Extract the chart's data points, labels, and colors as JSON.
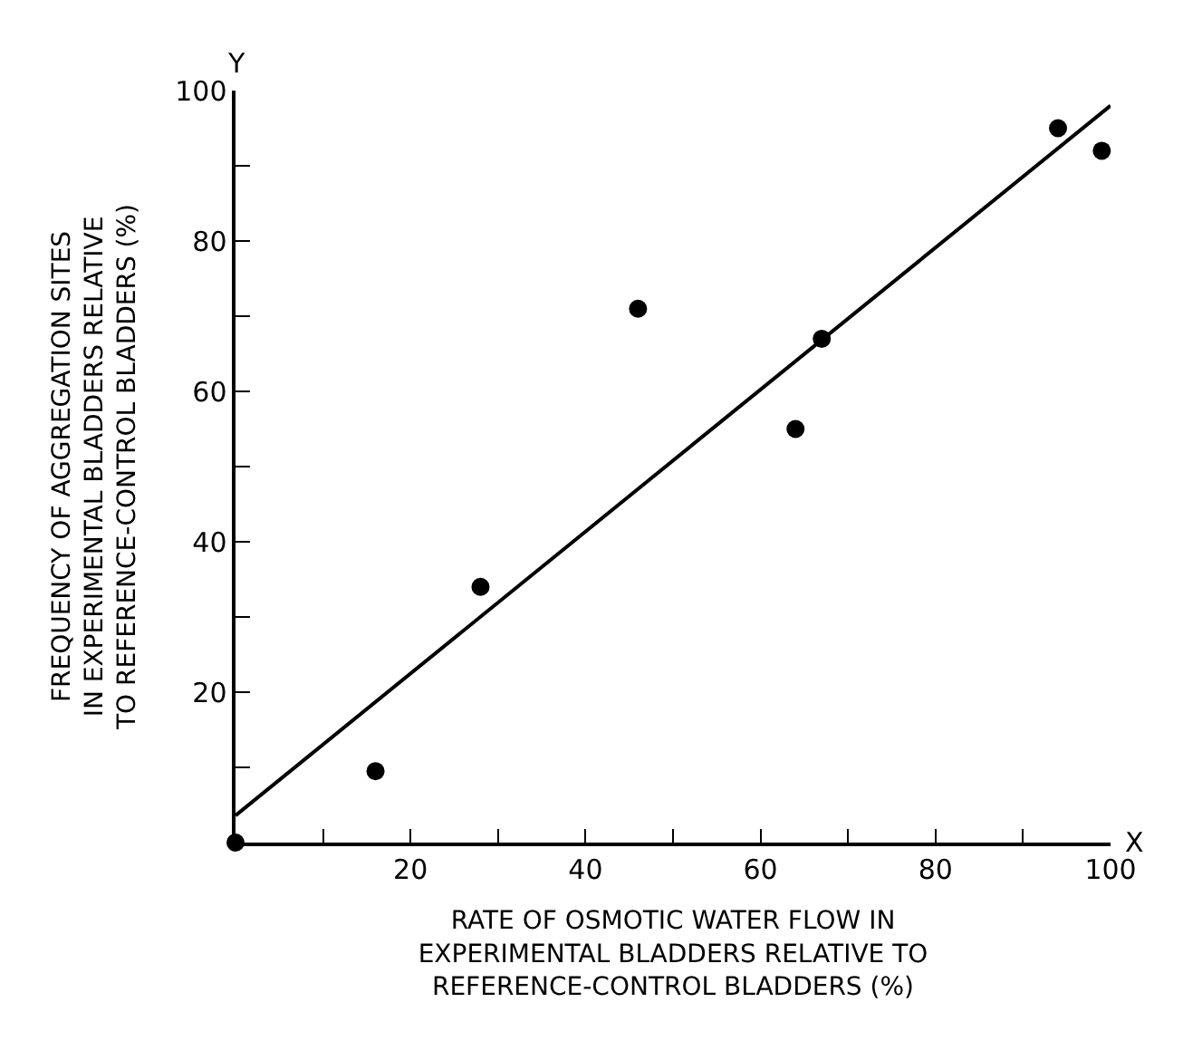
{
  "chart_data": {
    "type": "scatter",
    "xlabel": "RATE OF OSMOTIC WATER FLOW IN\nEXPERIMENTAL BLADDERS RELATIVE TO\nREFERENCE-CONTROL BLADDERS (%)",
    "ylabel": "FREQUENCY OF AGGREGATION SITES\nIN EXPERIMENTAL BLADDERS RELATIVE\nTO REFERENCE-CONTROL BLADDERS (%)",
    "series": [
      {
        "color": "#000000",
        "marker": "circle",
        "x": [
          0,
          16,
          28,
          46,
          64,
          67,
          94,
          99
        ],
        "values": [
          0,
          9.5,
          34,
          71,
          55,
          67,
          95,
          92
        ]
      },
      {
        "type": "line",
        "color": "#000000",
        "marker": "none",
        "line_style": "solid",
        "x": [
          0,
          100
        ],
        "values": [
          3.6,
          98
        ]
      }
    ],
    "xlim": [
      0,
      100
    ],
    "ylim": [
      0,
      100
    ],
    "xticks": [
      {
        "value": 10,
        "label": null
      },
      20,
      {
        "value": 30,
        "label": null
      },
      40,
      {
        "value": 50,
        "label": null
      },
      60,
      {
        "value": 70,
        "label": null
      },
      80,
      {
        "value": 90,
        "label": null
      },
      100
    ],
    "yticks": [
      {
        "value": 10,
        "label": null
      },
      20,
      {
        "value": 30,
        "label": null
      },
      40,
      {
        "value": 50,
        "label": null
      },
      60,
      {
        "value": 70,
        "label": null
      },
      80,
      {
        "value": 90,
        "label": null
      },
      100
    ],
    "annotations": [
      "X",
      "Y"
    ]
  }
}
